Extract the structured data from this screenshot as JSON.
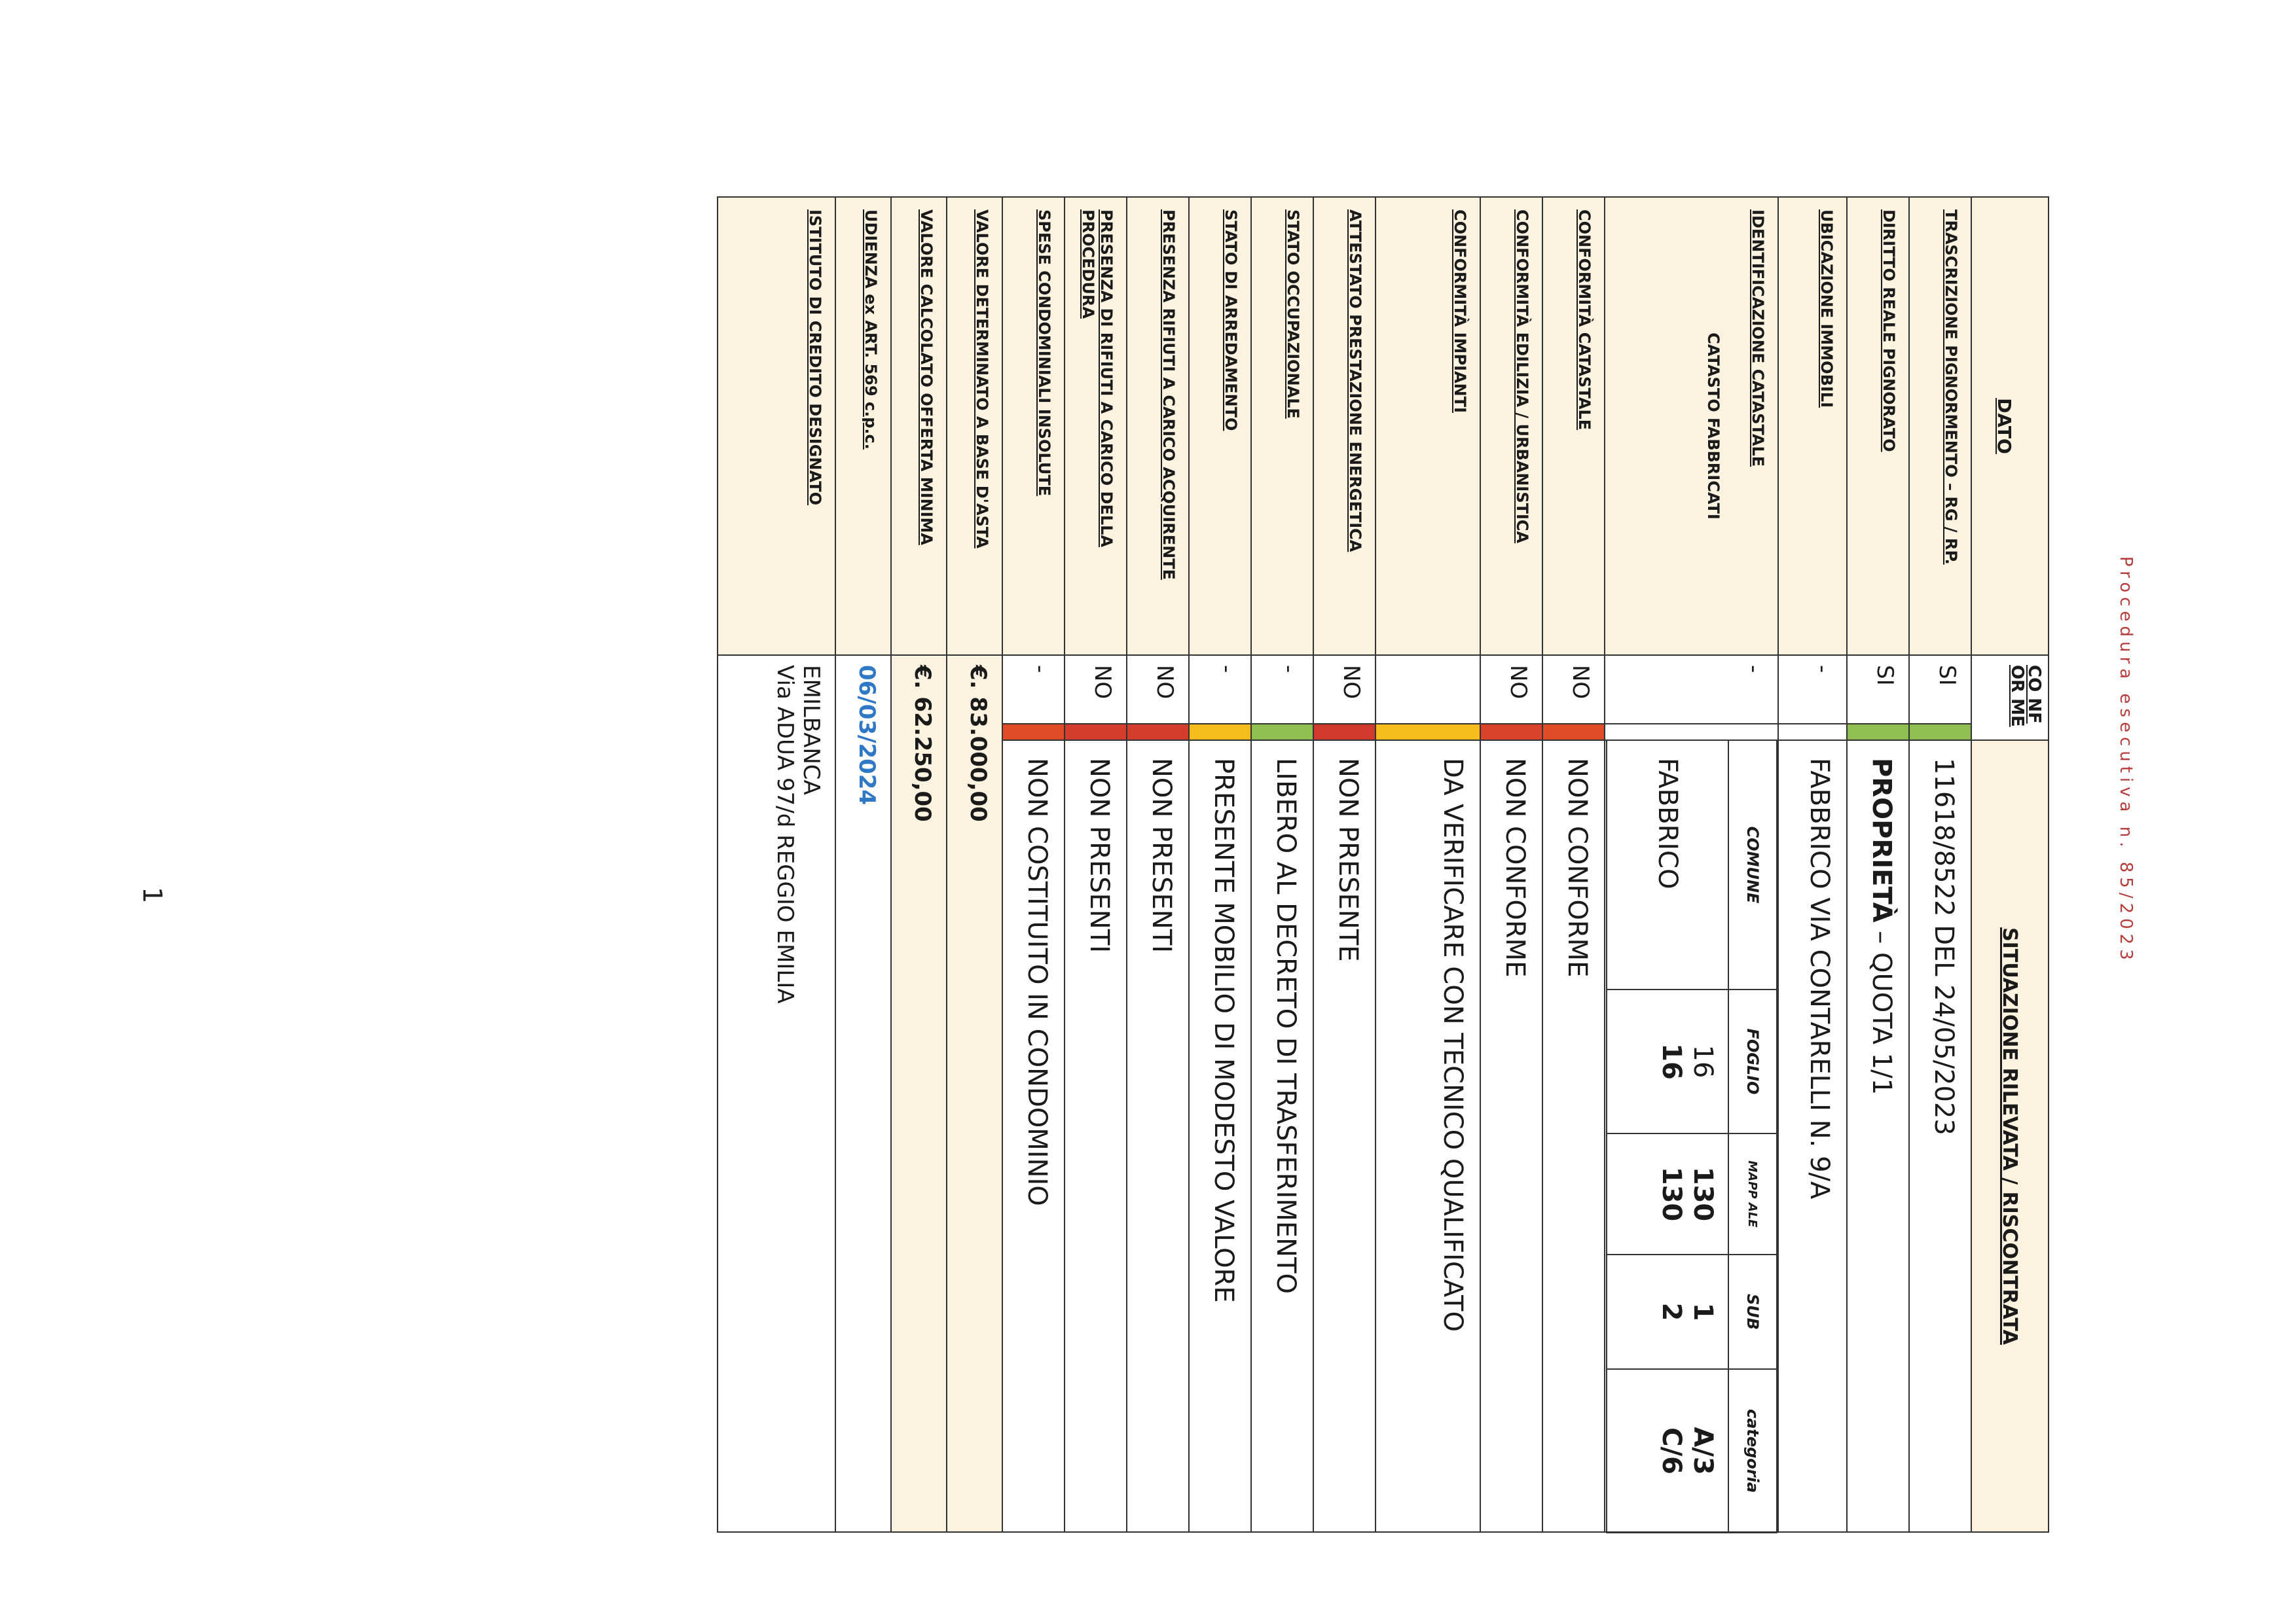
{
  "header": {
    "procedure": "Procedura esecutiva n. 85/2023"
  },
  "page_number": "1",
  "table": {
    "header_dato": "DATO",
    "header_conforme": "CO NF OR ME",
    "header_situazione": "SITUAZIONE RILEVATA / RISCONTRATA",
    "rows": [
      {
        "dato": "TRASCRIZIONE PIGNORMENTO – RG / RP.",
        "conforme": "SI",
        "color": "#8fbf52",
        "situazione": "11618/8522 DEL 24/05/2023"
      },
      {
        "dato": "DIRITTO REALE PIGNORATO",
        "conforme": "SI",
        "color": "#8fbf52",
        "situazione_bold": "PROPRIETÀ",
        "situazione": " – QUOTA 1/1"
      },
      {
        "dato": "UBICAZIONE IMMOBILI",
        "conforme": "-",
        "color": "#ffffff",
        "situazione": "FABBRICO   VIA CONTARELLI  N. 9/A"
      },
      {
        "dato": "IDENTIFICAZIONE CATASTALE",
        "sub": "CATASTO FABBRICATI",
        "conforme": "-",
        "color": "#ffffff"
      },
      {
        "dato": "CONFORMITÀ CATASTALE",
        "conforme": "NO",
        "color": "#e04c28",
        "situazione": "NON CONFORME"
      },
      {
        "dato": "CONFORMITÀ EDILIZIA / URBANISTICA",
        "conforme": "NO",
        "color": "#d9432b",
        "situazione": "NON CONFORME"
      },
      {
        "dato": "CONFORMITÀ IMPIANTI",
        "conforme": "",
        "color": "#f5bc1c",
        "situazione": "DA VERIFICARE CON TECNICO QUALIFICATO"
      },
      {
        "dato": "ATTESTATO PRESTAZIONE ENERGETICA",
        "conforme": "NO",
        "color": "#cf3a2c",
        "situazione": "NON PRESENTE"
      },
      {
        "dato": "STATO OCCUPAZIONALE",
        "conforme": "-",
        "color": "#8fbf52",
        "situazione": "LIBERO AL DECRETO DI TRASFERIMENTO"
      },
      {
        "dato": "STATO DI ARREDAMENTO",
        "conforme": "-",
        "color": "#f5bc1c",
        "situazione": "PRESENTE MOBILIO DI MODESTO VALORE"
      },
      {
        "dato": "PRESENZA RIFIUTI A CARICO ACQUIRENTE",
        "conforme": "NO",
        "color": "#d43c2b",
        "situazione": "NON PRESENTI"
      },
      {
        "dato": "PRESENZA DI RIFIUTI A CARICO DELLA PROCEDURA",
        "conforme": "NO",
        "color": "#d43c2b",
        "situazione": "NON PRESENTI"
      },
      {
        "dato": "SPESE CONDOMINIALI INSOLUTE",
        "conforme": "-",
        "color": "#e04c28",
        "situazione": "NON COSTITUITO IN CONDOMINIO"
      },
      {
        "dato": "VALORE DETERMINATO A BASE D'ASTA",
        "conforme": "€.  83.000,00"
      },
      {
        "dato": "VALORE CALCOLATO OFFERTA MINIMA",
        "conforme": "€.  62.250,00"
      },
      {
        "dato": "UDIENZA ex ART. 569 c.p.c.",
        "conforme": "06/03/2024"
      },
      {
        "dato": "ISTITUTO DI CREDITO DESIGNATO",
        "conforme": "EMILBANCA",
        "conforme2": "Via ADUA 97/d    REGGIO EMILIA"
      }
    ]
  },
  "catasto": {
    "headers": [
      "COMUNE",
      "FOGLIO",
      "MAPP ALE",
      "SUB",
      "categoria"
    ],
    "comune": "FABBRICO",
    "foglio": [
      "16",
      "16"
    ],
    "mappale": [
      "130",
      "130"
    ],
    "sub": [
      "1",
      "2"
    ],
    "categoria": [
      "A/3",
      "C/6"
    ]
  }
}
